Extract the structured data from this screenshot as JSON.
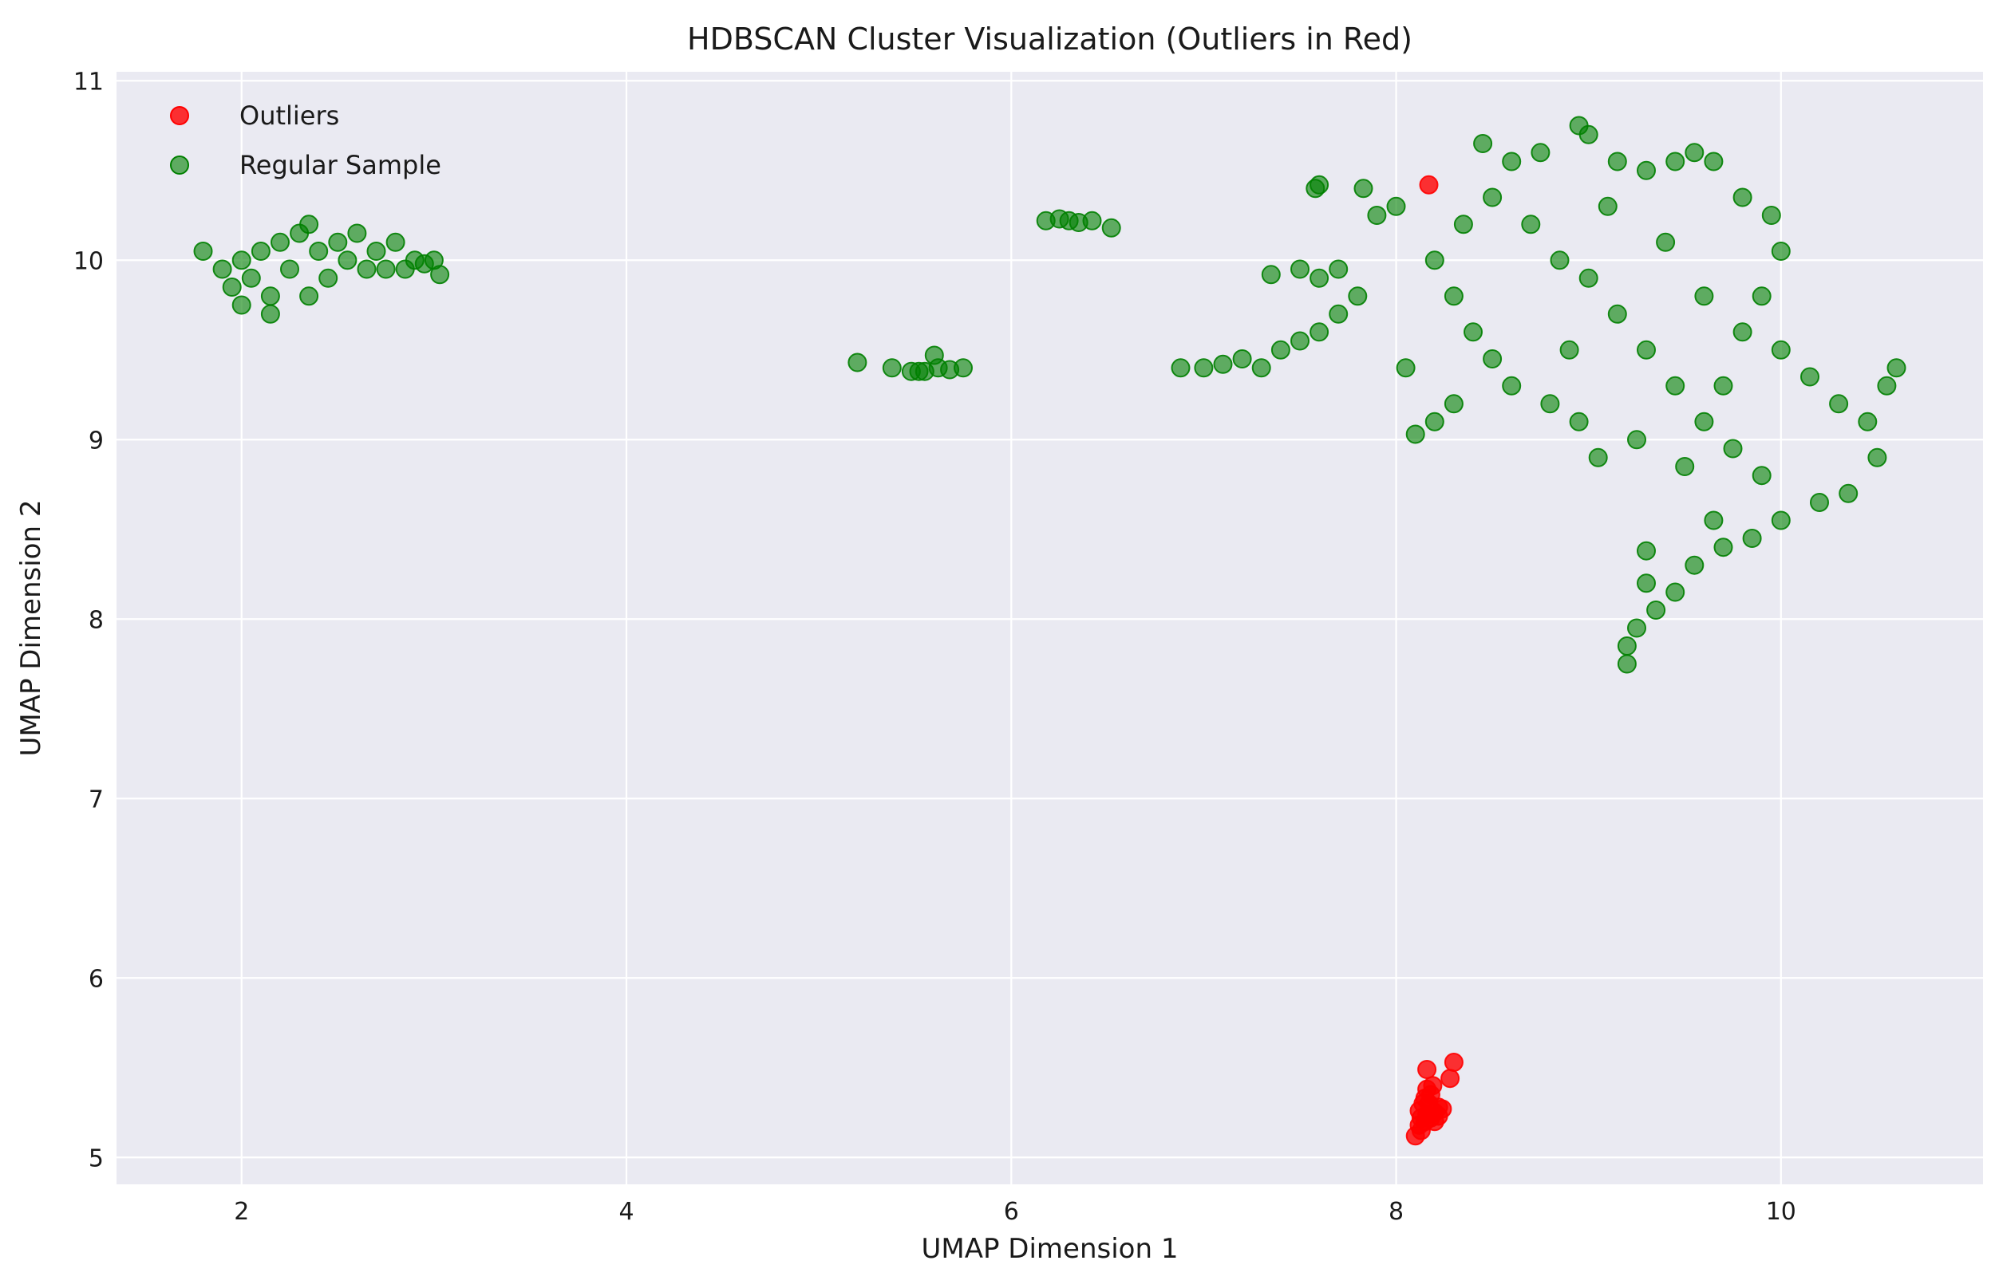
{
  "chart_data": {
    "type": "scatter",
    "title": "HDBSCAN Cluster Visualization (Outliers in Red)",
    "xlabel": "UMAP Dimension 1",
    "ylabel": "UMAP Dimension 2",
    "xlim": [
      1.35,
      11.05
    ],
    "ylim": [
      4.85,
      11.05
    ],
    "xticks": [
      2,
      4,
      6,
      8,
      10
    ],
    "yticks": [
      5,
      6,
      7,
      8,
      9,
      10,
      11
    ],
    "grid": true,
    "legend_position": "top-left",
    "colors": {
      "background": "#eaeaf2",
      "grid": "#ffffff"
    },
    "series": [
      {
        "name": "Outliers",
        "color": "#ff0000",
        "points": [
          [
            8.1,
            5.12
          ],
          [
            8.13,
            5.15
          ],
          [
            8.12,
            5.18
          ],
          [
            8.15,
            5.2
          ],
          [
            8.13,
            5.22
          ],
          [
            8.16,
            5.24
          ],
          [
            8.12,
            5.26
          ],
          [
            8.18,
            5.22
          ],
          [
            8.2,
            5.25
          ],
          [
            8.22,
            5.28
          ],
          [
            8.24,
            5.27
          ],
          [
            8.17,
            5.3
          ],
          [
            8.15,
            5.33
          ],
          [
            8.18,
            5.35
          ],
          [
            8.16,
            5.38
          ],
          [
            8.19,
            5.4
          ],
          [
            8.16,
            5.49
          ],
          [
            8.28,
            5.44
          ],
          [
            8.3,
            5.53
          ],
          [
            8.2,
            5.2
          ],
          [
            8.14,
            5.3
          ],
          [
            8.22,
            5.23
          ],
          [
            8.17,
            10.42
          ]
        ]
      },
      {
        "name": "Regular Sample",
        "color": "#008000",
        "points": [
          [
            1.8,
            10.05
          ],
          [
            1.9,
            9.95
          ],
          [
            1.95,
            9.85
          ],
          [
            2.0,
            10.0
          ],
          [
            2.0,
            9.75
          ],
          [
            2.05,
            9.9
          ],
          [
            2.1,
            10.05
          ],
          [
            2.15,
            9.8
          ],
          [
            2.2,
            10.1
          ],
          [
            2.25,
            9.95
          ],
          [
            2.3,
            10.15
          ],
          [
            2.35,
            10.2
          ],
          [
            2.4,
            10.05
          ],
          [
            2.45,
            9.9
          ],
          [
            2.5,
            10.1
          ],
          [
            2.55,
            10.0
          ],
          [
            2.6,
            10.15
          ],
          [
            2.65,
            9.95
          ],
          [
            2.7,
            10.05
          ],
          [
            2.75,
            9.95
          ],
          [
            2.8,
            10.1
          ],
          [
            2.85,
            9.95
          ],
          [
            2.9,
            10.0
          ],
          [
            2.95,
            9.98
          ],
          [
            3.0,
            10.0
          ],
          [
            3.03,
            9.92
          ],
          [
            2.15,
            9.7
          ],
          [
            2.35,
            9.8
          ],
          [
            5.2,
            9.43
          ],
          [
            5.38,
            9.4
          ],
          [
            5.48,
            9.38
          ],
          [
            5.52,
            9.38
          ],
          [
            5.55,
            9.38
          ],
          [
            5.6,
            9.47
          ],
          [
            5.62,
            9.4
          ],
          [
            5.68,
            9.39
          ],
          [
            5.75,
            9.4
          ],
          [
            6.18,
            10.22
          ],
          [
            6.25,
            10.23
          ],
          [
            6.3,
            10.22
          ],
          [
            6.35,
            10.21
          ],
          [
            6.42,
            10.22
          ],
          [
            6.52,
            10.18
          ],
          [
            6.88,
            9.4
          ],
          [
            7.0,
            9.4
          ],
          [
            7.1,
            9.42
          ],
          [
            7.2,
            9.45
          ],
          [
            7.3,
            9.4
          ],
          [
            7.4,
            9.5
          ],
          [
            7.5,
            9.55
          ],
          [
            7.6,
            9.6
          ],
          [
            7.7,
            9.7
          ],
          [
            7.8,
            9.8
          ],
          [
            7.35,
            9.92
          ],
          [
            7.5,
            9.95
          ],
          [
            7.6,
            9.9
          ],
          [
            7.7,
            9.95
          ],
          [
            7.58,
            10.4
          ],
          [
            7.6,
            10.42
          ],
          [
            7.83,
            10.4
          ],
          [
            7.9,
            10.25
          ],
          [
            8.0,
            10.3
          ],
          [
            8.05,
            9.4
          ],
          [
            8.1,
            9.03
          ],
          [
            8.2,
            9.1
          ],
          [
            8.3,
            9.2
          ],
          [
            8.45,
            10.65
          ],
          [
            8.6,
            10.55
          ],
          [
            8.75,
            10.6
          ],
          [
            8.95,
            10.75
          ],
          [
            9.0,
            10.7
          ],
          [
            9.15,
            10.55
          ],
          [
            9.3,
            10.5
          ],
          [
            9.45,
            10.55
          ],
          [
            9.55,
            10.6
          ],
          [
            9.65,
            10.55
          ],
          [
            9.8,
            10.35
          ],
          [
            9.95,
            10.25
          ],
          [
            10.0,
            10.05
          ],
          [
            9.9,
            9.8
          ],
          [
            10.0,
            9.5
          ],
          [
            10.15,
            9.35
          ],
          [
            10.3,
            9.2
          ],
          [
            10.45,
            9.1
          ],
          [
            10.55,
            9.3
          ],
          [
            10.6,
            9.4
          ],
          [
            10.5,
            8.9
          ],
          [
            10.35,
            8.7
          ],
          [
            10.2,
            8.65
          ],
          [
            10.0,
            8.55
          ],
          [
            9.85,
            8.45
          ],
          [
            9.7,
            8.4
          ],
          [
            9.65,
            8.55
          ],
          [
            9.55,
            8.3
          ],
          [
            9.45,
            8.15
          ],
          [
            9.35,
            8.05
          ],
          [
            9.3,
            8.2
          ],
          [
            9.25,
            7.95
          ],
          [
            9.2,
            7.85
          ],
          [
            9.2,
            7.75
          ],
          [
            9.3,
            8.38
          ],
          [
            9.05,
            8.9
          ],
          [
            8.95,
            9.1
          ],
          [
            8.8,
            9.2
          ],
          [
            8.6,
            9.3
          ],
          [
            8.5,
            9.45
          ],
          [
            8.4,
            9.6
          ],
          [
            8.3,
            9.8
          ],
          [
            8.2,
            10.0
          ],
          [
            8.35,
            10.2
          ],
          [
            8.5,
            10.35
          ],
          [
            8.7,
            10.2
          ],
          [
            8.85,
            10.0
          ],
          [
            9.0,
            9.9
          ],
          [
            9.15,
            9.7
          ],
          [
            9.3,
            9.5
          ],
          [
            9.45,
            9.3
          ],
          [
            9.6,
            9.1
          ],
          [
            9.75,
            8.95
          ],
          [
            9.9,
            8.8
          ],
          [
            9.1,
            10.3
          ],
          [
            9.4,
            10.1
          ],
          [
            9.6,
            9.8
          ],
          [
            9.8,
            9.6
          ],
          [
            9.25,
            9.0
          ],
          [
            9.5,
            8.85
          ],
          [
            8.9,
            9.5
          ],
          [
            9.7,
            9.3
          ]
        ]
      }
    ]
  }
}
